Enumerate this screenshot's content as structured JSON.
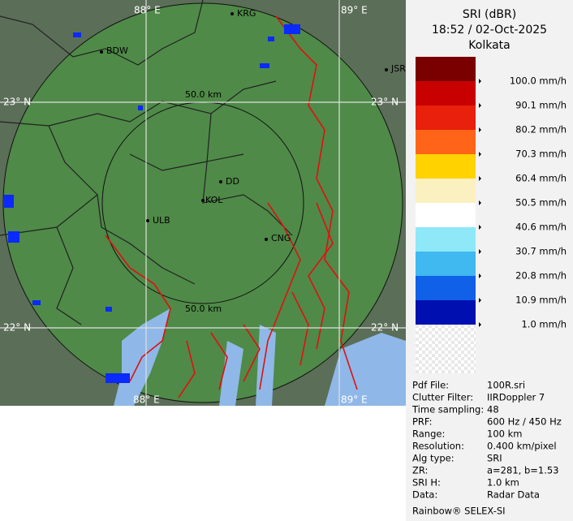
{
  "map": {
    "grid_labels": [
      {
        "text": "88° E",
        "pos": "top-left"
      },
      {
        "text": "89° E",
        "pos": "top-right"
      },
      {
        "text": "23° N",
        "pos": "left-upper"
      },
      {
        "text": "23° N",
        "pos": "right-upper"
      },
      {
        "text": "22° N",
        "pos": "left-lower"
      },
      {
        "text": "22° N",
        "pos": "right-lower"
      },
      {
        "text": "88° E",
        "pos": "bottom-left"
      },
      {
        "text": "89° E",
        "pos": "bottom-right"
      }
    ],
    "cities": [
      "KRG",
      "BDW",
      "JSR",
      "DD",
      "KOL",
      "ULB",
      "CNG"
    ],
    "ring_labels": [
      "50.0 km",
      "50.0 km"
    ]
  },
  "panel": {
    "title": [
      "SRI (dBR)",
      "18:52 / 02-Oct-2025",
      "Kolkata"
    ],
    "legend_colors": [
      "#7a0000",
      "#c80000",
      "#e8200c",
      "#ff6418",
      "#ffd200",
      "#fbf0c0",
      "#ffffff",
      "#8ee8f8",
      "#40b8f0",
      "#1060e8",
      "#0010b0"
    ],
    "legend_labels": [
      "100.0 mm/h",
      "90.1 mm/h",
      "80.2 mm/h",
      "70.3 mm/h",
      "60.4 mm/h",
      "50.5 mm/h",
      "40.6 mm/h",
      "30.7 mm/h",
      "20.8 mm/h",
      "10.9 mm/h",
      "1.0 mm/h"
    ],
    "info": [
      [
        "Pdf File:",
        "100R.sri"
      ],
      [
        "Clutter Filter:",
        "IIRDoppler 7"
      ],
      [
        "Time sampling:",
        "48"
      ],
      [
        "PRF:",
        "600 Hz / 450 Hz"
      ],
      [
        "Range:",
        "100 km"
      ],
      [
        "Resolution:",
        "0.400 km/pixel"
      ],
      [
        "Alg type:",
        "SRI"
      ],
      [
        "ZR:",
        "a=281, b=1.53"
      ],
      [
        "SRI H:",
        "1.0 km"
      ],
      [
        "Data:",
        "Radar Data"
      ]
    ],
    "footer": "Rainbow® SELEX-SI"
  }
}
